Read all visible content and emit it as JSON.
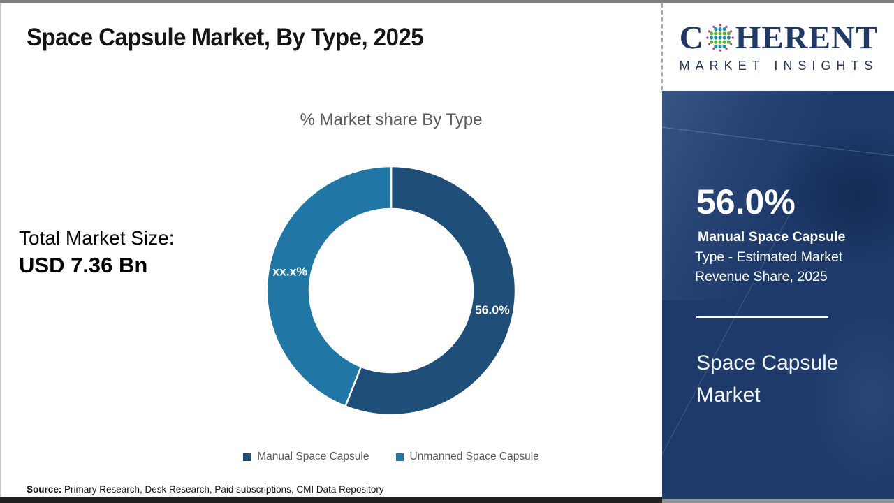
{
  "header": {
    "title": "Space Capsule Market, By Type, 2025"
  },
  "logo": {
    "word_c": "C",
    "word_rest": "HERENT",
    "subtitle": "MARKET INSIGHTS",
    "navy": "#1F3864",
    "dot_colors": {
      "teal": "#1C8FA8",
      "green": "#5FAE32",
      "magenta": "#C53A85"
    }
  },
  "totals": {
    "label": "Total Market Size:",
    "value": "USD 7.36 Bn"
  },
  "chart_data": {
    "type": "pie",
    "subtype": "donut",
    "title": "% Market share By Type",
    "categories": [
      "Manual Space Capsule",
      "Unmanned Space Capsule"
    ],
    "values": [
      56.0,
      44.0
    ],
    "slice_labels": [
      "56.0%",
      "xx.x%"
    ],
    "colors": [
      "#1F4E79",
      "#2076A4"
    ],
    "start_angle_deg_from_top": 0,
    "direction": "clockwise",
    "inner_radius_ratio": 0.66,
    "separator_color": "#ffffff",
    "legend_position": "bottom",
    "label_color": "#ffffff"
  },
  "sidebar": {
    "background": "#1d3a6b",
    "stat_value": "56.0%",
    "stat_bold": "Manual Space Capsule",
    "stat_desc": "Type - Estimated Market Revenue Share, 2025",
    "product": "Space Capsule Market"
  },
  "footer": {
    "source_label": "Source:",
    "source_text": " Primary Research, Desk Research, Paid subscriptions, CMI Data Repository"
  }
}
